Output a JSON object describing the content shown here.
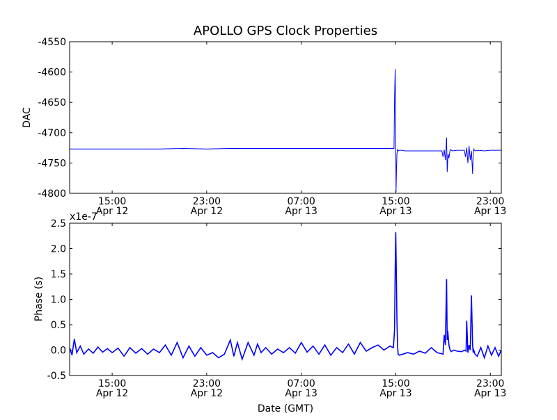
{
  "chart_data": [
    {
      "type": "line",
      "title": "APOLLO GPS Clock Properties",
      "xlabel": "",
      "ylabel": "DAC",
      "x_unit": "hours since Apr 12 00:00 GMT",
      "xlim": [
        11.4,
        47.93
      ],
      "ylim": [
        -4800,
        -4550
      ],
      "yticks": [
        -4800,
        -4750,
        -4700,
        -4650,
        -4600,
        -4550
      ],
      "ytick_labels": [
        "-4800",
        "-4750",
        "-4700",
        "-4650",
        "-4600",
        "-4550"
      ],
      "xticks": [
        15,
        23,
        31,
        39,
        47
      ],
      "xtick_labels": [
        [
          "15:00",
          "Apr 12"
        ],
        [
          "23:00",
          "Apr 12"
        ],
        [
          "07:00",
          "Apr 13"
        ],
        [
          "15:00",
          "Apr 13"
        ],
        [
          "23:00",
          "Apr 13"
        ]
      ],
      "color": "#0000ff",
      "series": [
        {
          "name": "DAC",
          "x": [
            11.4,
            13,
            15,
            17,
            19,
            21,
            23,
            25,
            27,
            29,
            31,
            33,
            35,
            37,
            38.85,
            38.9,
            38.95,
            39.0,
            39.02,
            39.06,
            39.1,
            39.15,
            39.2,
            39.3,
            39.5,
            39.8,
            40.2,
            41,
            42,
            42.9,
            43.0,
            43.1,
            43.2,
            43.3,
            43.35,
            43.42,
            43.5,
            43.6,
            43.8,
            44.2,
            44.8,
            44.9,
            45.0,
            45.1,
            45.2,
            45.3,
            45.4,
            45.5,
            45.55,
            45.6,
            45.7,
            46,
            46.5,
            47,
            47.93
          ],
          "y": [
            -4727,
            -4727,
            -4727,
            -4727,
            -4727,
            -4726,
            -4727,
            -4726,
            -4726,
            -4726,
            -4726,
            -4726,
            -4726,
            -4726,
            -4726,
            -4640,
            -4595,
            -4700,
            -4798,
            -4760,
            -4735,
            -4728,
            -4730,
            -4729,
            -4729,
            -4730,
            -4730,
            -4730,
            -4730,
            -4730,
            -4740,
            -4728,
            -4745,
            -4708,
            -4765,
            -4735,
            -4742,
            -4728,
            -4730,
            -4729,
            -4729,
            -4740,
            -4725,
            -4750,
            -4722,
            -4745,
            -4730,
            -4768,
            -4735,
            -4727,
            -4730,
            -4729,
            -4730,
            -4729,
            -4729
          ]
        }
      ]
    },
    {
      "type": "line",
      "title": "",
      "xlabel": "Date (GMT)",
      "ylabel": "Phase (s)",
      "y_scale_label": "x1e-7",
      "x_unit": "hours since Apr 12 00:00 GMT",
      "xlim": [
        11.4,
        47.93
      ],
      "ylim": [
        -0.5,
        2.5
      ],
      "yticks": [
        -0.5,
        0.0,
        0.5,
        1.0,
        1.5,
        2.0,
        2.5
      ],
      "ytick_labels": [
        "-0.5",
        "0.0",
        "0.5",
        "1.0",
        "1.5",
        "2.0",
        "2.5"
      ],
      "xticks": [
        15,
        23,
        31,
        39,
        47
      ],
      "xtick_labels": [
        [
          "15:00",
          "Apr 12"
        ],
        [
          "23:00",
          "Apr 12"
        ],
        [
          "07:00",
          "Apr 13"
        ],
        [
          "15:00",
          "Apr 13"
        ],
        [
          "23:00",
          "Apr 13"
        ]
      ],
      "color": "#0000ff",
      "series": [
        {
          "name": "Phase",
          "x": [
            11.4,
            11.6,
            11.8,
            12,
            12.3,
            12.6,
            13,
            13.4,
            13.8,
            14.2,
            14.6,
            15,
            15.5,
            16,
            16.5,
            17,
            17.5,
            18,
            18.5,
            19,
            19.5,
            20,
            20.5,
            21,
            21.5,
            22,
            22.5,
            23,
            23.5,
            24,
            24.5,
            25,
            25.3,
            25.6,
            26,
            26.5,
            27,
            27.3,
            27.6,
            28,
            28.5,
            29,
            29.5,
            30,
            30.5,
            31,
            31.5,
            32,
            32.5,
            33,
            33.5,
            34,
            34.5,
            35,
            35.5,
            36,
            36.5,
            37,
            37.5,
            38,
            38.5,
            38.8,
            38.9,
            38.95,
            39.0,
            39.05,
            39.1,
            39.15,
            39.2,
            39.3,
            39.6,
            40,
            40.5,
            41,
            41.5,
            42,
            42.5,
            43.0,
            43.1,
            43.2,
            43.3,
            43.35,
            43.4,
            43.5,
            43.6,
            43.7,
            43.9,
            44.2,
            44.6,
            44.8,
            44.95,
            45.0,
            45.1,
            45.2,
            45.3,
            45.4,
            45.5,
            45.55,
            45.6,
            45.7,
            45.9,
            46.2,
            46.5,
            46.8,
            47.1,
            47.4,
            47.7,
            47.93
          ],
          "y": [
            0.05,
            -0.1,
            0.22,
            -0.05,
            0.08,
            -0.08,
            0.02,
            -0.06,
            0.06,
            -0.04,
            0.03,
            -0.05,
            0.04,
            -0.12,
            0.05,
            -0.06,
            0.03,
            -0.08,
            0.02,
            -0.05,
            0.1,
            -0.1,
            0.15,
            -0.15,
            0.08,
            -0.12,
            0.05,
            -0.1,
            -0.05,
            -0.15,
            -0.08,
            0.2,
            -0.12,
            0.15,
            -0.18,
            0.15,
            -0.1,
            0.12,
            -0.05,
            0.05,
            -0.08,
            0.02,
            -0.05,
            0.05,
            -0.06,
            0.15,
            -0.04,
            0.08,
            -0.08,
            0.1,
            -0.1,
            0.05,
            -0.05,
            0.12,
            -0.08,
            0.15,
            -0.02,
            0.05,
            0.1,
            0.0,
            0.08,
            0.05,
            0.4,
            1.6,
            2.32,
            1.45,
            0.6,
            0.1,
            -0.08,
            -0.1,
            -0.08,
            -0.05,
            -0.08,
            -0.02,
            -0.06,
            0.05,
            -0.05,
            -0.08,
            0.3,
            0.1,
            1.4,
            0.2,
            0.38,
            0.1,
            0.0,
            -0.03,
            0.0,
            -0.02,
            -0.03,
            0.0,
            -0.02,
            0.58,
            -0.05,
            0.1,
            0.0,
            1.08,
            0.1,
            -0.05,
            0.0,
            -0.08,
            -0.12,
            0.05,
            -0.15,
            0.08,
            -0.1,
            0.05,
            -0.12,
            0.0
          ]
        }
      ]
    }
  ]
}
